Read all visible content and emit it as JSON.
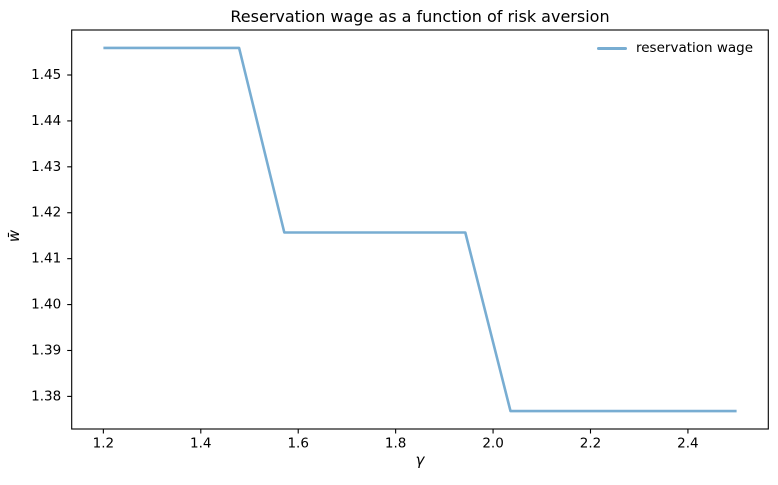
{
  "colors": {
    "line": "#78add2",
    "spine": "#000000",
    "text": "#000000",
    "background": "#ffffff"
  },
  "chart_data": {
    "type": "line",
    "title": "Reservation wage as a function of risk aversion",
    "xlabel": "γ",
    "ylabel": "w̄",
    "legend": [
      "reservation wage"
    ],
    "legend_position": "upper right",
    "grid": false,
    "x": [
      1.2,
      1.2929,
      1.3857,
      1.4786,
      1.5714,
      1.6643,
      1.7571,
      1.85,
      1.9429,
      2.0357,
      2.1286,
      2.2214,
      2.3143,
      2.4071,
      2.5
    ],
    "y": [
      1.4559,
      1.4559,
      1.4559,
      1.4559,
      1.4157,
      1.4157,
      1.4157,
      1.4157,
      1.4157,
      1.3768,
      1.3768,
      1.3768,
      1.3768,
      1.3768,
      1.3768
    ],
    "xlim": [
      1.135,
      2.565
    ],
    "ylim": [
      1.3729,
      1.4598
    ],
    "xticks": [
      1.2,
      1.4,
      1.6,
      1.8,
      2.0,
      2.2,
      2.4
    ],
    "xtick_labels": [
      "1.2",
      "1.4",
      "1.6",
      "1.8",
      "2.0",
      "2.2",
      "2.4"
    ],
    "yticks": [
      1.38,
      1.39,
      1.4,
      1.41,
      1.42,
      1.43,
      1.44,
      1.45
    ],
    "ytick_labels": [
      "1.38",
      "1.39",
      "1.40",
      "1.41",
      "1.42",
      "1.43",
      "1.44",
      "1.45"
    ]
  }
}
